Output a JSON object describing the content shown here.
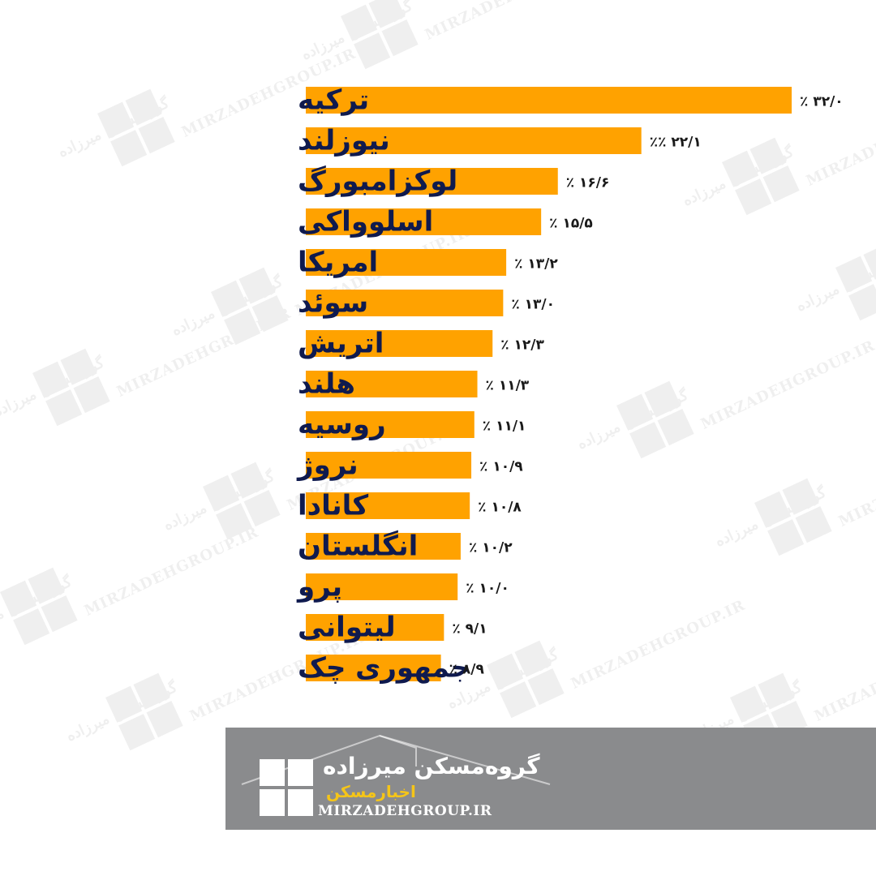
{
  "chart_data": {
    "type": "bar",
    "orientation": "horizontal",
    "categories": [
      "ترکیه",
      "نیوزلند",
      "لوکزامبورگ",
      "اسلوواکی",
      "امریکا",
      "سوئد",
      "اتریش",
      "هلند",
      "روسیه",
      "نروژ",
      "کانادا",
      "انگلستان",
      "پرو",
      "لیتوانی",
      "جمهوری چک"
    ],
    "values": [
      32.0,
      22.1,
      16.6,
      15.5,
      13.2,
      13.0,
      12.3,
      11.3,
      11.1,
      10.9,
      10.8,
      10.2,
      10.0,
      9.1,
      8.9
    ],
    "value_labels": [
      "٪ ۳۲/۰",
      "٪٪ ۲۲/۱",
      "٪ ۱۶/۶",
      "٪ ۱۵/۵",
      "٪ ۱۳/۲",
      "٪ ۱۳/۰",
      "٪ ۱۲/۳",
      "٪ ۱۱/۳",
      "٪ ۱۱/۱",
      "٪ ۱۰/۹",
      "٪ ۱۰/۸",
      "٪ ۱۰/۲",
      "٪ ۱۰/۰",
      "٪ ۹/۱",
      "٪ ۸/۹"
    ],
    "bar_color": "#ffa200",
    "label_color": "#0f1a4e",
    "grid": false
  },
  "watermark": {
    "brand": "گروه‌مسکن میرزاده",
    "sub": "اخبار مسکن",
    "url": "MIRZADEHGROUP.IR"
  },
  "footer": {
    "brand_name": "گروه‌مسکن میرزاده",
    "sub_title": "اخبارمسکن",
    "url": "MIRZADEHGROUP.IR",
    "background": "#8a8b8d",
    "accent": "#f5c518"
  }
}
